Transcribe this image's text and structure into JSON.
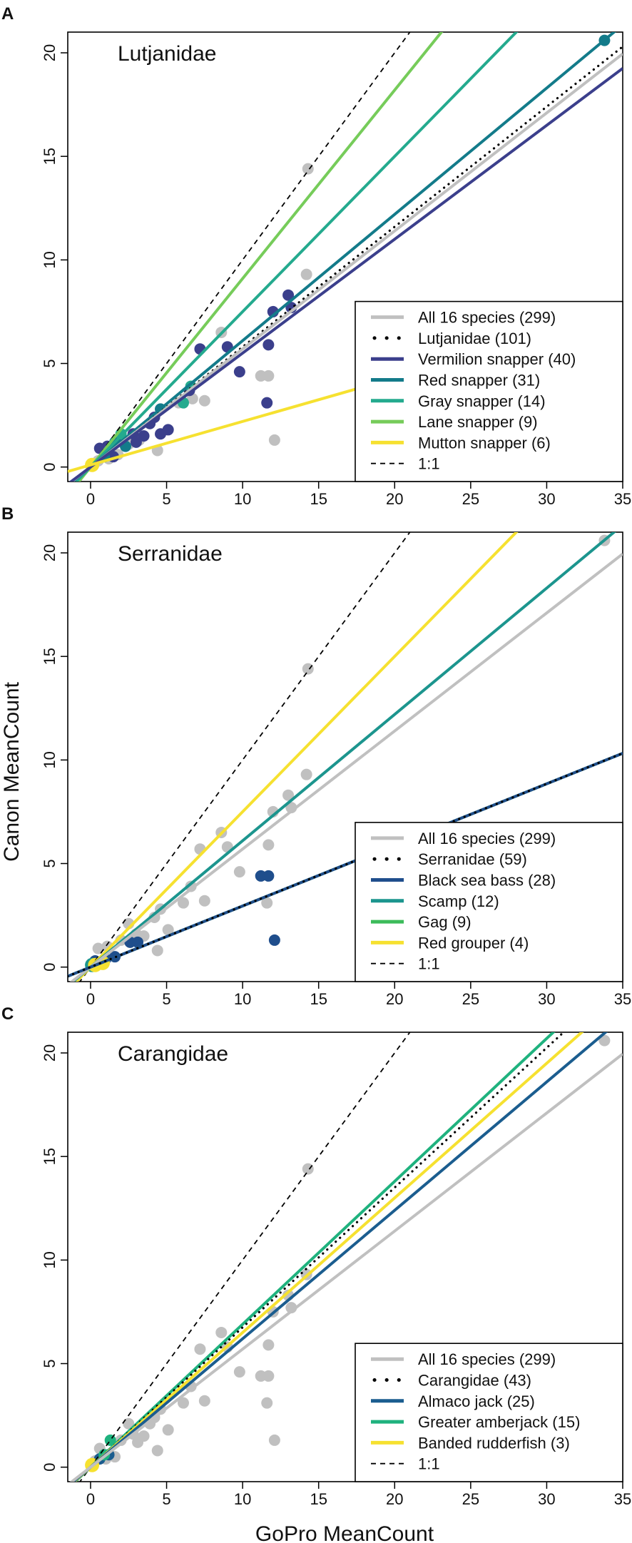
{
  "figure": {
    "ylabel": "Canon MeanCount",
    "xlabel": "GoPro MeanCount"
  },
  "chart_data": [
    {
      "panel_letter": "A",
      "type": "scatter",
      "title": "Lutjanidae",
      "xlabel": "GoPro MeanCount",
      "ylabel": "Canon MeanCount",
      "xlim": [
        -1.5,
        35
      ],
      "ylim": [
        -0.7,
        21
      ],
      "xticks": [
        0,
        5,
        10,
        15,
        20,
        25,
        30,
        35
      ],
      "yticks": [
        0,
        5,
        10,
        15,
        20
      ],
      "legend_position": "bottom-right",
      "legend": [
        {
          "label": "All 16 species (299)",
          "style": "solid",
          "color": "#c0c0c0"
        },
        {
          "label": "Lutjanidae (101)",
          "style": "dotted",
          "color": "#000000"
        },
        {
          "label": "Vermilion snapper (40)",
          "style": "solid",
          "color": "#3b3f8c"
        },
        {
          "label": "Red snapper (31)",
          "style": "solid",
          "color": "#137b8a"
        },
        {
          "label": "Gray snapper (14)",
          "style": "solid",
          "color": "#24aa8e"
        },
        {
          "label": "Lane snapper (9)",
          "style": "solid",
          "color": "#76cc5a"
        },
        {
          "label": "Mutton snapper (6)",
          "style": "solid",
          "color": "#f6e130"
        },
        {
          "label": "1:1",
          "style": "dashed",
          "color": "#000000"
        }
      ],
      "lines": [
        {
          "name": "1:1",
          "slope": 1.0,
          "intercept": 0.0,
          "color": "#000000",
          "style": "dashed"
        },
        {
          "name": "Lane snapper",
          "slope": 0.91,
          "intercept": 0.0,
          "color": "#76cc5a",
          "style": "solid"
        },
        {
          "name": "Gray snapper",
          "slope": 0.75,
          "intercept": 0.0,
          "color": "#24aa8e",
          "style": "solid"
        },
        {
          "name": "Red snapper",
          "slope": 0.61,
          "intercept": 0.0,
          "color": "#137b8a",
          "style": "solid"
        },
        {
          "name": "Lutjanidae",
          "slope": 0.58,
          "intercept": 0.0,
          "color": "#000000",
          "style": "dotted"
        },
        {
          "name": "All 16 species",
          "slope": 0.57,
          "intercept": 0.0,
          "color": "#c0c0c0",
          "style": "solid"
        },
        {
          "name": "Vermilion snapper",
          "slope": 0.55,
          "intercept": 0.0,
          "color": "#3b3f8c",
          "style": "solid"
        },
        {
          "name": "Mutton snapper",
          "slope": 0.21,
          "intercept": 0.1,
          "color": "#f6e130",
          "style": "solid"
        }
      ],
      "points": [
        {
          "x": 0.2,
          "y": 0.1,
          "color": "#c0c0c0"
        },
        {
          "x": 0.5,
          "y": 0.3,
          "color": "#c0c0c0"
        },
        {
          "x": 1.2,
          "y": 0.4,
          "color": "#c0c0c0"
        },
        {
          "x": 1.8,
          "y": 0.6,
          "color": "#c0c0c0"
        },
        {
          "x": 2.5,
          "y": 1.1,
          "color": "#c0c0c0"
        },
        {
          "x": 3.2,
          "y": 1.3,
          "color": "#c0c0c0"
        },
        {
          "x": 4.4,
          "y": 0.8,
          "color": "#c0c0c0"
        },
        {
          "x": 5.8,
          "y": 3.1,
          "color": "#c0c0c0"
        },
        {
          "x": 6.7,
          "y": 3.3,
          "color": "#c0c0c0"
        },
        {
          "x": 7.5,
          "y": 3.2,
          "color": "#c0c0c0"
        },
        {
          "x": 8.6,
          "y": 6.5,
          "color": "#c0c0c0"
        },
        {
          "x": 11.2,
          "y": 4.4,
          "color": "#c0c0c0"
        },
        {
          "x": 11.7,
          "y": 4.4,
          "color": "#c0c0c0"
        },
        {
          "x": 12.1,
          "y": 1.3,
          "color": "#c0c0c0"
        },
        {
          "x": 14.2,
          "y": 9.3,
          "color": "#c0c0c0"
        },
        {
          "x": 14.3,
          "y": 14.4,
          "color": "#c0c0c0"
        },
        {
          "x": 0.6,
          "y": 0.9,
          "color": "#3b3f8c"
        },
        {
          "x": 1.1,
          "y": 1.0,
          "color": "#3b3f8c"
        },
        {
          "x": 1.5,
          "y": 0.5,
          "color": "#3b3f8c"
        },
        {
          "x": 2.0,
          "y": 1.3,
          "color": "#3b3f8c"
        },
        {
          "x": 2.8,
          "y": 1.6,
          "color": "#3b3f8c"
        },
        {
          "x": 3.0,
          "y": 1.2,
          "color": "#3b3f8c"
        },
        {
          "x": 3.5,
          "y": 1.5,
          "color": "#3b3f8c"
        },
        {
          "x": 3.9,
          "y": 2.1,
          "color": "#3b3f8c"
        },
        {
          "x": 4.2,
          "y": 2.4,
          "color": "#3b3f8c"
        },
        {
          "x": 4.6,
          "y": 1.6,
          "color": "#3b3f8c"
        },
        {
          "x": 5.1,
          "y": 1.8,
          "color": "#3b3f8c"
        },
        {
          "x": 6.5,
          "y": 3.7,
          "color": "#3b3f8c"
        },
        {
          "x": 7.2,
          "y": 5.7,
          "color": "#3b3f8c"
        },
        {
          "x": 9.0,
          "y": 5.8,
          "color": "#3b3f8c"
        },
        {
          "x": 9.8,
          "y": 4.6,
          "color": "#3b3f8c"
        },
        {
          "x": 11.6,
          "y": 3.1,
          "color": "#3b3f8c"
        },
        {
          "x": 11.7,
          "y": 5.9,
          "color": "#3b3f8c"
        },
        {
          "x": 12.0,
          "y": 7.5,
          "color": "#3b3f8c"
        },
        {
          "x": 13.0,
          "y": 8.3,
          "color": "#3b3f8c"
        },
        {
          "x": 13.2,
          "y": 7.7,
          "color": "#3b3f8c"
        },
        {
          "x": 0.9,
          "y": 0.5,
          "color": "#137b8a"
        },
        {
          "x": 1.6,
          "y": 1.2,
          "color": "#137b8a"
        },
        {
          "x": 2.3,
          "y": 1.0,
          "color": "#137b8a"
        },
        {
          "x": 4.6,
          "y": 2.8,
          "color": "#137b8a"
        },
        {
          "x": 33.8,
          "y": 20.6,
          "color": "#137b8a"
        },
        {
          "x": 2.0,
          "y": 1.6,
          "color": "#24aa8e"
        },
        {
          "x": 6.1,
          "y": 3.1,
          "color": "#24aa8e"
        },
        {
          "x": 6.6,
          "y": 3.9,
          "color": "#24aa8e"
        },
        {
          "x": 0.1,
          "y": 0.1,
          "color": "#f6e130",
          "size": "large"
        }
      ]
    },
    {
      "panel_letter": "B",
      "type": "scatter",
      "title": "Serranidae",
      "xlabel": "GoPro MeanCount",
      "ylabel": "Canon MeanCount",
      "xlim": [
        -1.5,
        35
      ],
      "ylim": [
        -0.7,
        21
      ],
      "xticks": [
        0,
        5,
        10,
        15,
        20,
        25,
        30,
        35
      ],
      "yticks": [
        0,
        5,
        10,
        15,
        20
      ],
      "legend_position": "bottom-right",
      "legend": [
        {
          "label": "All 16 species (299)",
          "style": "solid",
          "color": "#c0c0c0"
        },
        {
          "label": "Serranidae (59)",
          "style": "dotted",
          "color": "#000000"
        },
        {
          "label": "Black sea bass (28)",
          "style": "solid",
          "color": "#1f4e8c"
        },
        {
          "label": "Scamp (12)",
          "style": "solid",
          "color": "#1c958e"
        },
        {
          "label": "Gag (9)",
          "style": "solid",
          "color": "#3cbb5a"
        },
        {
          "label": "Red grouper (4)",
          "style": "solid",
          "color": "#f6e130"
        },
        {
          "label": "1:1",
          "style": "dashed",
          "color": "#000000"
        }
      ],
      "lines": [
        {
          "name": "1:1",
          "slope": 1.0,
          "intercept": 0.0,
          "color": "#000000",
          "style": "dashed"
        },
        {
          "name": "Red grouper",
          "slope": 0.75,
          "intercept": 0.0,
          "color": "#f6e130",
          "style": "solid"
        },
        {
          "name": "Scamp",
          "slope": 0.61,
          "intercept": 0.0,
          "color": "#1c958e",
          "style": "solid"
        },
        {
          "name": "All 16 species",
          "slope": 0.57,
          "intercept": 0.0,
          "color": "#c0c0c0",
          "style": "solid"
        },
        {
          "name": "Gag",
          "slope": 0.295,
          "intercept": 0.0,
          "color": "#3cbb5a",
          "style": "solid"
        },
        {
          "name": "Black sea bass",
          "slope": 0.295,
          "intercept": 0.0,
          "color": "#1f4e8c",
          "style": "solid"
        },
        {
          "name": "Serranidae",
          "slope": 0.295,
          "intercept": 0.0,
          "color": "#000000",
          "style": "dotted"
        }
      ],
      "points": [
        {
          "x": 0.5,
          "y": 0.9,
          "color": "#c0c0c0"
        },
        {
          "x": 1.1,
          "y": 1.0,
          "color": "#c0c0c0"
        },
        {
          "x": 2.0,
          "y": 1.3,
          "color": "#c0c0c0"
        },
        {
          "x": 2.5,
          "y": 2.1,
          "color": "#c0c0c0"
        },
        {
          "x": 3.0,
          "y": 1.6,
          "color": "#c0c0c0"
        },
        {
          "x": 3.5,
          "y": 1.5,
          "color": "#c0c0c0"
        },
        {
          "x": 4.2,
          "y": 2.4,
          "color": "#c0c0c0"
        },
        {
          "x": 4.4,
          "y": 0.8,
          "color": "#c0c0c0"
        },
        {
          "x": 4.6,
          "y": 2.8,
          "color": "#c0c0c0"
        },
        {
          "x": 5.1,
          "y": 1.8,
          "color": "#c0c0c0"
        },
        {
          "x": 6.1,
          "y": 3.1,
          "color": "#c0c0c0"
        },
        {
          "x": 6.6,
          "y": 3.9,
          "color": "#c0c0c0"
        },
        {
          "x": 7.2,
          "y": 5.7,
          "color": "#c0c0c0"
        },
        {
          "x": 7.5,
          "y": 3.2,
          "color": "#c0c0c0"
        },
        {
          "x": 8.6,
          "y": 6.5,
          "color": "#c0c0c0"
        },
        {
          "x": 9.0,
          "y": 5.8,
          "color": "#c0c0c0"
        },
        {
          "x": 9.8,
          "y": 4.6,
          "color": "#c0c0c0"
        },
        {
          "x": 11.6,
          "y": 3.1,
          "color": "#c0c0c0"
        },
        {
          "x": 11.7,
          "y": 5.9,
          "color": "#c0c0c0"
        },
        {
          "x": 12.0,
          "y": 7.5,
          "color": "#c0c0c0"
        },
        {
          "x": 13.0,
          "y": 8.3,
          "color": "#c0c0c0"
        },
        {
          "x": 13.2,
          "y": 7.7,
          "color": "#c0c0c0"
        },
        {
          "x": 14.2,
          "y": 9.3,
          "color": "#c0c0c0"
        },
        {
          "x": 14.3,
          "y": 14.4,
          "color": "#c0c0c0"
        },
        {
          "x": 33.8,
          "y": 20.6,
          "color": "#c0c0c0"
        },
        {
          "x": 0.3,
          "y": 0.3,
          "color": "#1f4e8c"
        },
        {
          "x": 1.0,
          "y": 0.4,
          "color": "#1f4e8c"
        },
        {
          "x": 1.6,
          "y": 0.5,
          "color": "#1f4e8c"
        },
        {
          "x": 2.6,
          "y": 1.2,
          "color": "#1f4e8c"
        },
        {
          "x": 3.1,
          "y": 1.2,
          "color": "#1f4e8c"
        },
        {
          "x": 11.2,
          "y": 4.4,
          "color": "#1f4e8c"
        },
        {
          "x": 11.7,
          "y": 4.4,
          "color": "#1f4e8c"
        },
        {
          "x": 12.1,
          "y": 1.3,
          "color": "#1f4e8c"
        },
        {
          "x": 0.1,
          "y": 0.1,
          "color": "#1c958e",
          "size": "large"
        },
        {
          "x": 0.3,
          "y": 0.1,
          "color": "#f6e130",
          "size": "large"
        },
        {
          "x": 0.8,
          "y": 0.2,
          "color": "#f6e130",
          "size": "large"
        }
      ]
    },
    {
      "panel_letter": "C",
      "type": "scatter",
      "title": "Carangidae",
      "xlabel": "GoPro MeanCount",
      "ylabel": "Canon MeanCount",
      "xlim": [
        -1.5,
        35
      ],
      "ylim": [
        -0.7,
        21
      ],
      "xticks": [
        0,
        5,
        10,
        15,
        20,
        25,
        30,
        35
      ],
      "yticks": [
        0,
        5,
        10,
        15,
        20
      ],
      "legend_position": "bottom-right",
      "legend": [
        {
          "label": "All 16 species (299)",
          "style": "solid",
          "color": "#c0c0c0"
        },
        {
          "label": "Carangidae (43)",
          "style": "dotted",
          "color": "#000000"
        },
        {
          "label": "Almaco jack (25)",
          "style": "solid",
          "color": "#1b5d8f"
        },
        {
          "label": "Greater amberjack (15)",
          "style": "solid",
          "color": "#1fb27e"
        },
        {
          "label": "Banded rudderfish (3)",
          "style": "solid",
          "color": "#f6e130"
        },
        {
          "label": "1:1",
          "style": "dashed",
          "color": "#000000"
        }
      ],
      "lines": [
        {
          "name": "1:1",
          "slope": 1.0,
          "intercept": 0.0,
          "color": "#000000",
          "style": "dashed"
        },
        {
          "name": "Greater amberjack",
          "slope": 0.69,
          "intercept": 0.0,
          "color": "#1fb27e",
          "style": "solid"
        },
        {
          "name": "Carangidae",
          "slope": 0.675,
          "intercept": 0.0,
          "color": "#000000",
          "style": "dotted"
        },
        {
          "name": "Banded rudderfish",
          "slope": 0.65,
          "intercept": 0.0,
          "color": "#f6e130",
          "style": "solid"
        },
        {
          "name": "Almaco jack",
          "slope": 0.62,
          "intercept": 0.0,
          "color": "#1b5d8f",
          "style": "solid"
        },
        {
          "name": "All 16 species",
          "slope": 0.57,
          "intercept": 0.0,
          "color": "#c0c0c0",
          "style": "solid"
        }
      ],
      "points": [
        {
          "x": 0.3,
          "y": 0.3,
          "color": "#c0c0c0"
        },
        {
          "x": 0.6,
          "y": 0.9,
          "color": "#c0c0c0"
        },
        {
          "x": 1.0,
          "y": 0.4,
          "color": "#c0c0c0"
        },
        {
          "x": 1.6,
          "y": 0.5,
          "color": "#c0c0c0"
        },
        {
          "x": 2.0,
          "y": 1.3,
          "color": "#c0c0c0"
        },
        {
          "x": 2.5,
          "y": 2.1,
          "color": "#c0c0c0"
        },
        {
          "x": 2.8,
          "y": 1.6,
          "color": "#c0c0c0"
        },
        {
          "x": 3.1,
          "y": 1.2,
          "color": "#c0c0c0"
        },
        {
          "x": 3.5,
          "y": 1.5,
          "color": "#c0c0c0"
        },
        {
          "x": 3.9,
          "y": 2.1,
          "color": "#c0c0c0"
        },
        {
          "x": 4.2,
          "y": 2.4,
          "color": "#c0c0c0"
        },
        {
          "x": 4.4,
          "y": 0.8,
          "color": "#c0c0c0"
        },
        {
          "x": 4.6,
          "y": 2.8,
          "color": "#c0c0c0"
        },
        {
          "x": 5.1,
          "y": 1.8,
          "color": "#c0c0c0"
        },
        {
          "x": 6.1,
          "y": 3.1,
          "color": "#c0c0c0"
        },
        {
          "x": 6.6,
          "y": 3.9,
          "color": "#c0c0c0"
        },
        {
          "x": 7.2,
          "y": 5.7,
          "color": "#c0c0c0"
        },
        {
          "x": 7.5,
          "y": 3.2,
          "color": "#c0c0c0"
        },
        {
          "x": 8.6,
          "y": 6.5,
          "color": "#c0c0c0"
        },
        {
          "x": 9.0,
          "y": 5.8,
          "color": "#c0c0c0"
        },
        {
          "x": 9.8,
          "y": 4.6,
          "color": "#c0c0c0"
        },
        {
          "x": 11.2,
          "y": 4.4,
          "color": "#c0c0c0"
        },
        {
          "x": 11.6,
          "y": 3.1,
          "color": "#c0c0c0"
        },
        {
          "x": 11.7,
          "y": 4.4,
          "color": "#c0c0c0"
        },
        {
          "x": 11.7,
          "y": 5.9,
          "color": "#c0c0c0"
        },
        {
          "x": 12.0,
          "y": 7.5,
          "color": "#c0c0c0"
        },
        {
          "x": 12.1,
          "y": 1.3,
          "color": "#c0c0c0"
        },
        {
          "x": 13.0,
          "y": 8.3,
          "color": "#c0c0c0"
        },
        {
          "x": 13.2,
          "y": 7.7,
          "color": "#c0c0c0"
        },
        {
          "x": 14.2,
          "y": 9.3,
          "color": "#c0c0c0"
        },
        {
          "x": 14.3,
          "y": 14.4,
          "color": "#c0c0c0"
        },
        {
          "x": 33.8,
          "y": 20.6,
          "color": "#c0c0c0"
        },
        {
          "x": 0.6,
          "y": 0.4,
          "color": "#1b5d8f"
        },
        {
          "x": 1.2,
          "y": 0.6,
          "color": "#1b5d8f"
        },
        {
          "x": 0.9,
          "y": 0.6,
          "color": "#1fb27e"
        },
        {
          "x": 1.3,
          "y": 1.3,
          "color": "#1fb27e"
        },
        {
          "x": 0.1,
          "y": 0.1,
          "color": "#f6e130",
          "size": "large"
        }
      ]
    }
  ]
}
